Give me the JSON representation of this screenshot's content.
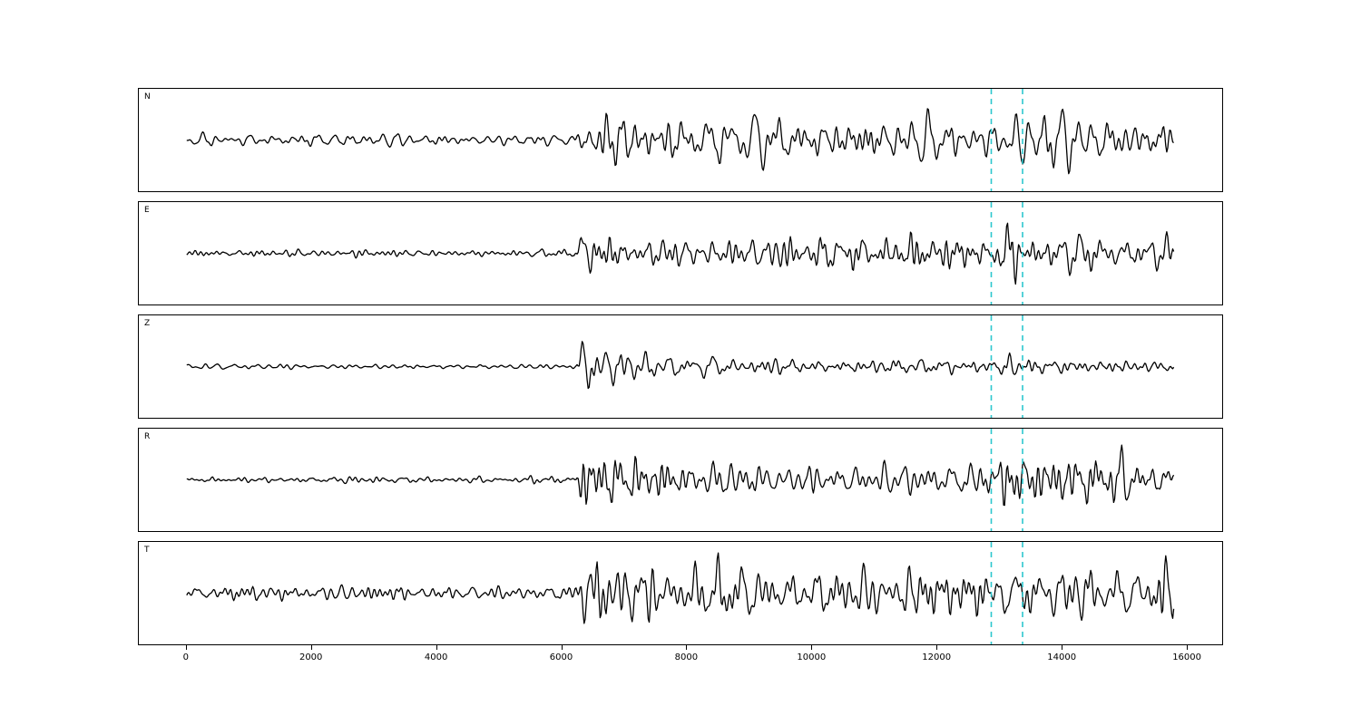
{
  "page": {
    "background": "#ffffff"
  },
  "chart_data": {
    "type": "line",
    "title": "",
    "xlabel": "",
    "ylabel": "",
    "legend": null,
    "grid": false,
    "x_axis": {
      "min": -765,
      "max": 16550,
      "ticks": [
        0,
        2000,
        4000,
        6000,
        8000,
        10000,
        12000,
        14000,
        16000
      ]
    },
    "trace_color": "#000000",
    "marker_lines": {
      "xs": [
        12860,
        13360
      ],
      "color": "#2cc7ce",
      "style": "dashed",
      "description": "event window markers spanning all panels"
    },
    "panels": [
      {
        "label": "N",
        "seed": 11,
        "trace_start": 0,
        "trace_end": 15780,
        "envelope": [
          [
            0,
            7
          ],
          [
            6150,
            7
          ],
          [
            6320,
            26
          ],
          [
            6600,
            34
          ],
          [
            7400,
            30
          ],
          [
            9500,
            26
          ],
          [
            11000,
            28
          ],
          [
            12800,
            26
          ],
          [
            13050,
            46
          ],
          [
            13350,
            38
          ],
          [
            13700,
            28
          ],
          [
            15780,
            30
          ]
        ]
      },
      {
        "label": "E",
        "seed": 23,
        "trace_start": 0,
        "trace_end": 15780,
        "envelope": [
          [
            0,
            4
          ],
          [
            6180,
            4
          ],
          [
            6300,
            40
          ],
          [
            6700,
            26
          ],
          [
            7600,
            22
          ],
          [
            9000,
            19
          ],
          [
            12800,
            17
          ],
          [
            13060,
            44
          ],
          [
            13400,
            24
          ],
          [
            14200,
            26
          ],
          [
            15780,
            17
          ]
        ]
      },
      {
        "label": "Z",
        "seed": 37,
        "trace_start": 0,
        "trace_end": 15780,
        "envelope": [
          [
            0,
            3
          ],
          [
            6220,
            3
          ],
          [
            6330,
            48
          ],
          [
            6700,
            28
          ],
          [
            7300,
            16
          ],
          [
            8500,
            11
          ],
          [
            10000,
            9
          ],
          [
            12800,
            8
          ],
          [
            13100,
            13
          ],
          [
            14000,
            8
          ],
          [
            15780,
            6
          ]
        ]
      },
      {
        "label": "R",
        "seed": 41,
        "trace_start": 0,
        "trace_end": 15780,
        "envelope": [
          [
            0,
            4
          ],
          [
            6220,
            4
          ],
          [
            6340,
            42
          ],
          [
            6900,
            26
          ],
          [
            8500,
            22
          ],
          [
            10500,
            19
          ],
          [
            12850,
            17
          ],
          [
            13120,
            50
          ],
          [
            13420,
            24
          ],
          [
            14300,
            28
          ],
          [
            15780,
            20
          ]
        ]
      },
      {
        "label": "T",
        "seed": 53,
        "trace_start": 0,
        "trace_end": 15780,
        "envelope": [
          [
            0,
            9
          ],
          [
            6200,
            9
          ],
          [
            6450,
            36
          ],
          [
            7200,
            32
          ],
          [
            9500,
            27
          ],
          [
            12800,
            25
          ],
          [
            13080,
            46
          ],
          [
            13400,
            30
          ],
          [
            14500,
            30
          ],
          [
            15780,
            28
          ]
        ]
      }
    ]
  }
}
